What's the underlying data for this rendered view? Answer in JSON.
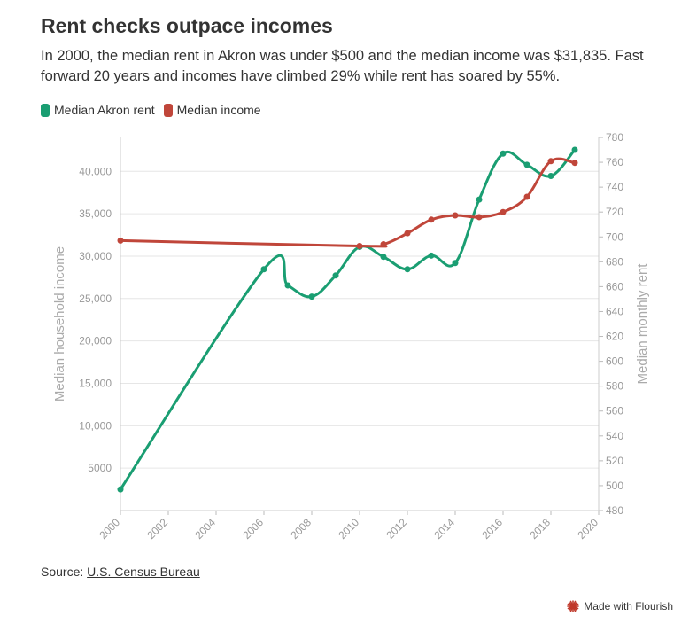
{
  "header": {
    "title": "Rent checks outpace incomes",
    "subtitle": "In 2000, the median rent in Akron was under $500 and the median income was $31,835. Fast forward 20 years and incomes have climbed 29% while rent has soared by 55%."
  },
  "legend": {
    "items": [
      {
        "label": "Median Akron rent",
        "color": "#1a9e72"
      },
      {
        "label": "Median income",
        "color": "#c0463a"
      }
    ]
  },
  "footer": {
    "source_prefix": "Source: ",
    "source_link": "U.S. Census Bureau",
    "flourish_label": "Made with Flourish"
  },
  "chart_data": {
    "type": "line",
    "title": "Rent checks outpace incomes",
    "xlim": [
      2000,
      2020
    ],
    "xticks": [
      2000,
      2002,
      2004,
      2006,
      2008,
      2010,
      2012,
      2014,
      2016,
      2018,
      2020
    ],
    "y_left": {
      "label": "Median household income",
      "ylim": [
        0,
        44000
      ],
      "ticks": [
        5000,
        10000,
        15000,
        20000,
        25000,
        30000,
        35000,
        40000
      ],
      "tick_labels": [
        "5000",
        "10,000",
        "15,000",
        "20,000",
        "25,000",
        "30,000",
        "35,000",
        "40,000"
      ]
    },
    "y_right": {
      "label": "Median monthly rent",
      "ylim": [
        480,
        780
      ],
      "ticks": [
        480,
        500,
        520,
        540,
        560,
        580,
        600,
        620,
        640,
        660,
        680,
        700,
        720,
        740,
        760,
        780
      ]
    },
    "grid": true,
    "legend_position": "top-left",
    "series": [
      {
        "name": "Median Akron rent",
        "axis": "right",
        "color": "#1a9e72",
        "x": [
          2000,
          2006,
          2007,
          2008,
          2009,
          2010,
          2011,
          2012,
          2013,
          2014,
          2015,
          2016,
          2017,
          2018,
          2019
        ],
        "values": [
          497,
          674,
          661,
          652,
          669,
          692,
          684,
          674,
          685,
          679,
          730,
          767,
          758,
          749,
          770
        ]
      },
      {
        "name": "Median income",
        "axis": "left",
        "color": "#c0463a",
        "x": [
          2000,
          2010,
          2011,
          2012,
          2013,
          2014,
          2015,
          2016,
          2017,
          2018,
          2019
        ],
        "values": [
          31835,
          31200,
          31400,
          32700,
          34300,
          34800,
          34600,
          35200,
          37000,
          41200,
          41000
        ]
      }
    ]
  }
}
